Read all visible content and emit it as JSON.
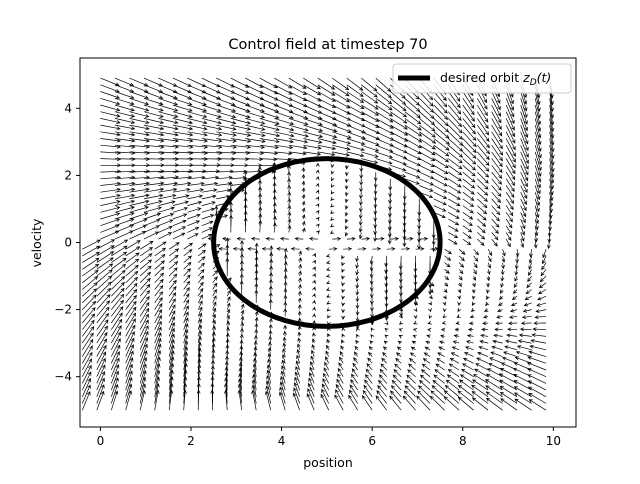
{
  "chart_data": {
    "type": "quiver",
    "title": "Control field at timestep 70",
    "xlabel": "position",
    "ylabel": "velocity",
    "xlim": [
      -0.45,
      10.5
    ],
    "ylim": [
      -5.5,
      5.5
    ],
    "xticks": [
      0,
      2,
      4,
      6,
      8,
      10
    ],
    "yticks": [
      -4,
      -2,
      0,
      2,
      4
    ],
    "xtick_labels": [
      "0",
      "2",
      "4",
      "6",
      "8",
      "10"
    ],
    "ytick_labels": [
      "−4",
      "−2",
      "0",
      "2",
      "4"
    ],
    "grid": false,
    "legend": {
      "placement": "top-right",
      "entries": [
        {
          "label_main": "desired orbit ",
          "label_math": "z",
          "label_sub": "D",
          "label_tail": "(t)",
          "color": "#000000",
          "style": "thick-line"
        }
      ]
    },
    "orbit": {
      "center": [
        5.0,
        0.0
      ],
      "x_radius": 2.5,
      "y_radius": 2.5,
      "color": "#000000"
    },
    "field": {
      "upper_region": {
        "x_range": [
          0,
          10
        ],
        "y_range": [
          0,
          5
        ],
        "shift": 0.45
      },
      "lower_region": {
        "x_range": [
          -0.4,
          10
        ],
        "y_range": [
          -5,
          0
        ],
        "shift": 0
      },
      "grid_step": 0.2,
      "arrow_color": "#000000"
    }
  }
}
